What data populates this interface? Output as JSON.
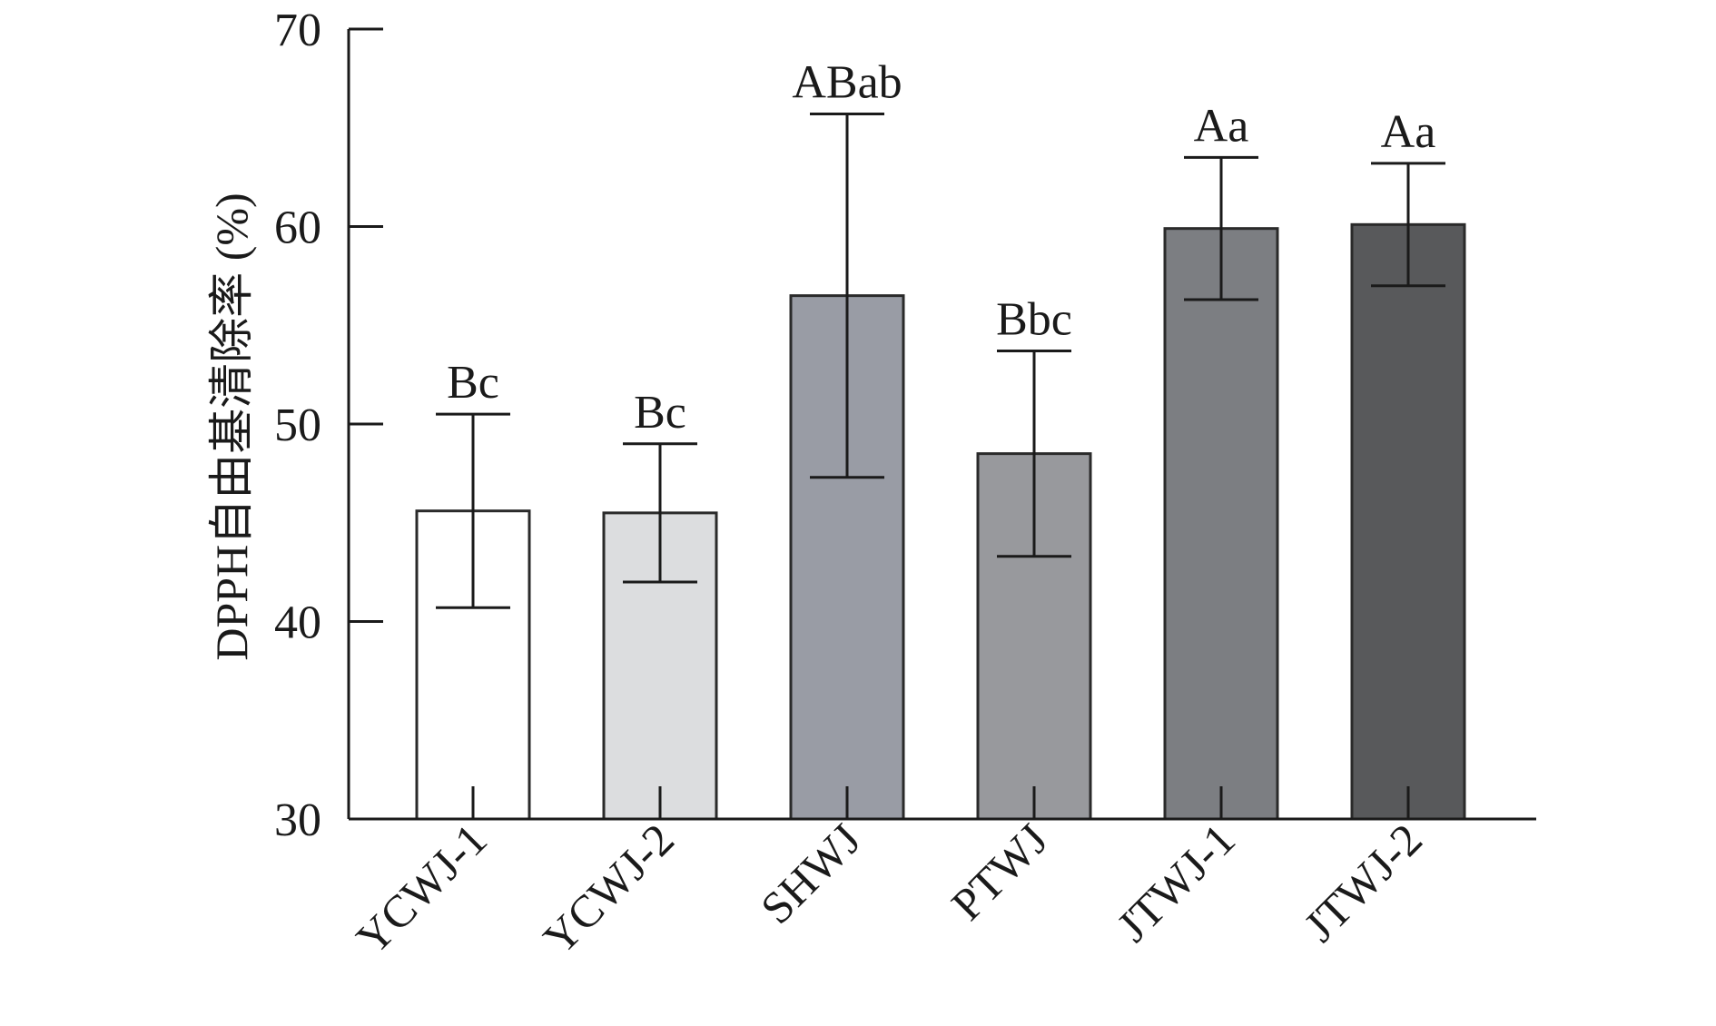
{
  "chart_data": {
    "type": "bar",
    "title": "",
    "xlabel": "",
    "ylabel": "DPPH自由基清除率 (%)",
    "ylim": [
      30,
      70
    ],
    "yticks": [
      30,
      40,
      50,
      60,
      70
    ],
    "ytick_labels": [
      "30",
      "40",
      "50",
      "60",
      "70"
    ],
    "grid": false,
    "categories": [
      "YCWJ-1",
      "YCWJ-2",
      "SHWJ",
      "PTWJ",
      "JTWJ-1",
      "JTWJ-2"
    ],
    "values": [
      45.6,
      45.5,
      56.5,
      48.5,
      59.9,
      60.1
    ],
    "errors": [
      4.9,
      3.5,
      9.2,
      5.2,
      3.6,
      3.1
    ],
    "significance": [
      "Bc",
      "Bc",
      "ABab",
      "Bbc",
      "Aa",
      "Aa"
    ],
    "colors": [
      "#ffffff",
      "#dcdddf",
      "#999ca5",
      "#98999d",
      "#7c7e82",
      "#58595b"
    ]
  }
}
